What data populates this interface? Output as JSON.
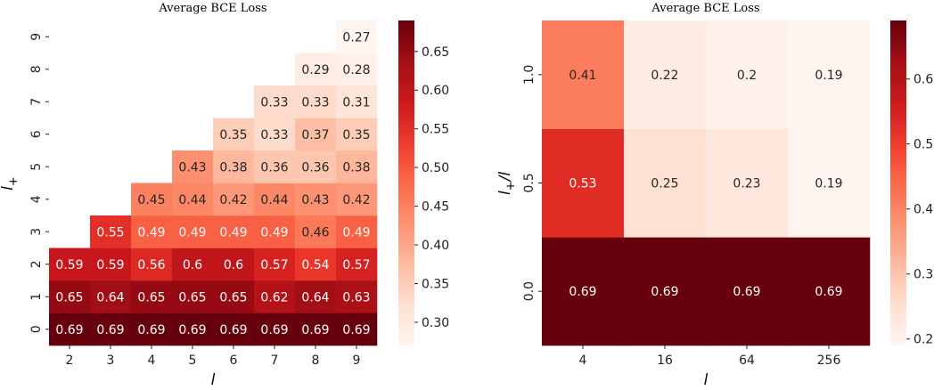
{
  "chart_data": [
    {
      "type": "heatmap",
      "title": "Average BCE Loss",
      "xlabel": "l",
      "ylabel": "l+",
      "x_categories": [
        "2",
        "3",
        "4",
        "5",
        "6",
        "7",
        "8",
        "9"
      ],
      "y_categories": [
        "0",
        "1",
        "2",
        "3",
        "4",
        "5",
        "6",
        "7",
        "8",
        "9"
      ],
      "values": [
        [
          0.69,
          0.69,
          0.69,
          0.69,
          0.69,
          0.69,
          0.69,
          0.69
        ],
        [
          0.65,
          0.64,
          0.65,
          0.65,
          0.65,
          0.62,
          0.64,
          0.63
        ],
        [
          0.59,
          0.59,
          0.56,
          0.6,
          0.6,
          0.57,
          0.54,
          0.57
        ],
        [
          null,
          0.55,
          0.49,
          0.49,
          0.49,
          0.49,
          0.46,
          0.49
        ],
        [
          null,
          null,
          0.45,
          0.44,
          0.42,
          0.44,
          0.43,
          0.42
        ],
        [
          null,
          null,
          null,
          0.43,
          0.38,
          0.36,
          0.36,
          0.38
        ],
        [
          null,
          null,
          null,
          null,
          0.35,
          0.33,
          0.37,
          0.35
        ],
        [
          null,
          null,
          null,
          null,
          null,
          0.33,
          0.33,
          0.31
        ],
        [
          null,
          null,
          null,
          null,
          null,
          null,
          0.29,
          0.28
        ],
        [
          null,
          null,
          null,
          null,
          null,
          null,
          null,
          0.27
        ]
      ],
      "colormap": "Reds",
      "vmin": 0.27,
      "vmax": 0.69,
      "colorbar_ticks": [
        "0.30",
        "0.35",
        "0.40",
        "0.45",
        "0.50",
        "0.55",
        "0.60",
        "0.65"
      ],
      "colorbar_tick_values": [
        0.3,
        0.35,
        0.4,
        0.45,
        0.5,
        0.55,
        0.6,
        0.65
      ]
    },
    {
      "type": "heatmap",
      "title": "Average BCE Loss",
      "xlabel": "l",
      "ylabel": "l+/l",
      "x_categories": [
        "4",
        "16",
        "64",
        "256"
      ],
      "y_categories": [
        "0.0",
        "0.5",
        "1.0"
      ],
      "values": [
        [
          0.69,
          0.69,
          0.69,
          0.69
        ],
        [
          0.53,
          0.25,
          0.23,
          0.19
        ],
        [
          0.41,
          0.22,
          0.2,
          0.19
        ]
      ],
      "colormap": "Reds",
      "vmin": 0.19,
      "vmax": 0.69,
      "colorbar_ticks": [
        "0.2",
        "0.3",
        "0.4",
        "0.5",
        "0.6"
      ],
      "colorbar_tick_values": [
        0.2,
        0.3,
        0.4,
        0.5,
        0.6
      ]
    }
  ]
}
